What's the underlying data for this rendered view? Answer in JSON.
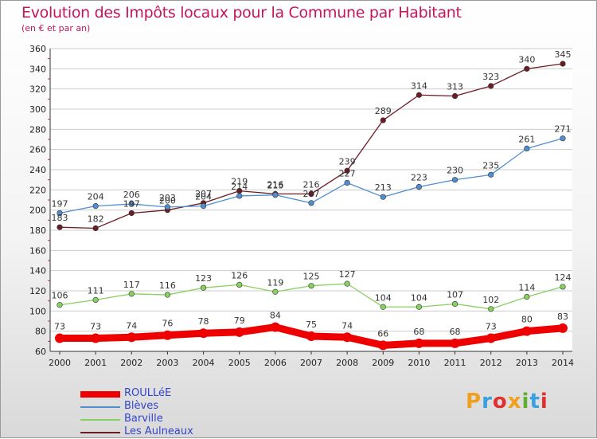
{
  "header": {
    "title": "Evolution des Impôts locaux pour la Commune par Habitant",
    "subtitle": "(en € et par an)"
  },
  "logo": {
    "text": "Proxiti",
    "colors": [
      "#f0a020",
      "#3aa0e0",
      "#e03030",
      "#f0a020",
      "#60b030",
      "#3aa0e0",
      "#e03030"
    ]
  },
  "chart_data": {
    "type": "line",
    "x": [
      "2000",
      "2001",
      "2002",
      "2003",
      "2004",
      "2005",
      "2006",
      "2007",
      "2008",
      "2009",
      "2010",
      "2011",
      "2012",
      "2013",
      "2014"
    ],
    "ylim": [
      60,
      360
    ],
    "yticks": [
      60,
      80,
      100,
      120,
      140,
      160,
      180,
      200,
      220,
      240,
      260,
      280,
      300,
      320,
      340,
      360
    ],
    "grid": "horizontal",
    "legend_position": "bottom-left",
    "series": [
      {
        "name": "ROULLéE",
        "color": "#ee0000",
        "values": [
          73,
          73,
          74,
          76,
          78,
          79,
          84,
          75,
          74,
          66,
          68,
          68,
          73,
          80,
          83
        ]
      },
      {
        "name": "Blèves",
        "color": "#4f8fd0",
        "values": [
          197,
          204,
          206,
          203,
          204,
          214,
          215,
          207,
          227,
          213,
          223,
          230,
          235,
          261,
          271
        ]
      },
      {
        "name": "Barville",
        "color": "#88d060",
        "values": [
          106,
          111,
          117,
          116,
          123,
          126,
          119,
          125,
          127,
          104,
          104,
          107,
          102,
          114,
          124
        ]
      },
      {
        "name": "Les Aulneaux",
        "color": "#6b1c24",
        "values": [
          183,
          182,
          197,
          200,
          207,
          219,
          216,
          216,
          239,
          289,
          314,
          313,
          323,
          340,
          345
        ]
      }
    ]
  }
}
